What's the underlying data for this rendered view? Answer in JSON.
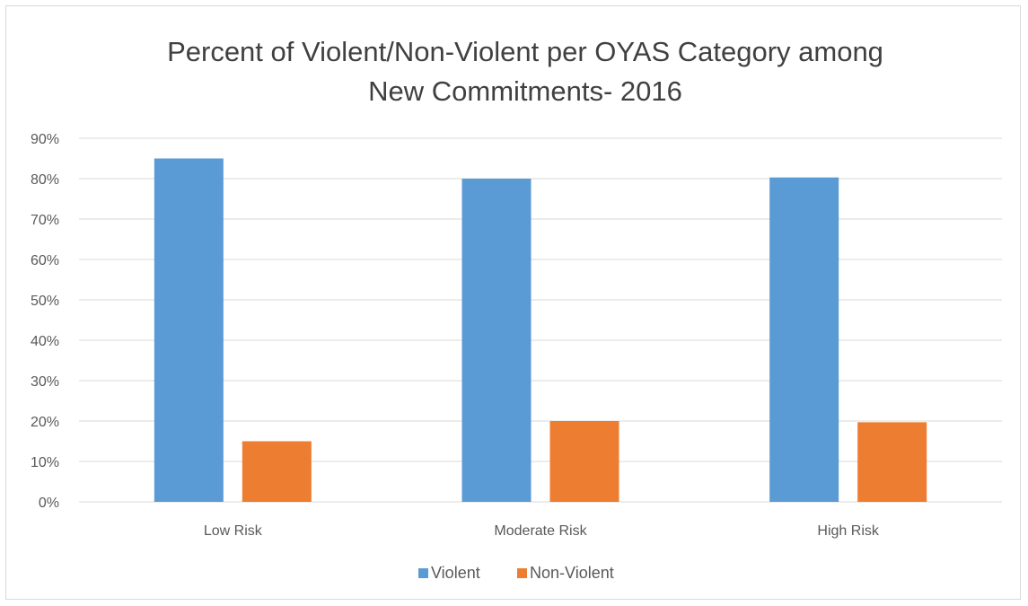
{
  "chart_data": {
    "type": "bar",
    "title_lines": [
      "Percent of Violent/Non-Violent per OYAS Category among",
      "New Commitments- 2016"
    ],
    "categories": [
      "Low Risk",
      "Moderate Risk",
      "High Risk"
    ],
    "series": [
      {
        "name": "Violent",
        "values": [
          85,
          80,
          80.3
        ],
        "color": "#5b9bd5"
      },
      {
        "name": "Non-Violent",
        "values": [
          15,
          20,
          19.7
        ],
        "color": "#ed7d31"
      }
    ],
    "y_unit": "%",
    "ylim": [
      0,
      90
    ],
    "y_ticks": [
      0,
      10,
      20,
      30,
      40,
      50,
      60,
      70,
      80,
      90
    ],
    "y_tick_labels": [
      "0%",
      "10%",
      "20%",
      "30%",
      "40%",
      "50%",
      "60%",
      "70%",
      "80%",
      "90%"
    ],
    "grid": true,
    "legend_position": "bottom",
    "gridline_color": "#d9d9d9"
  }
}
